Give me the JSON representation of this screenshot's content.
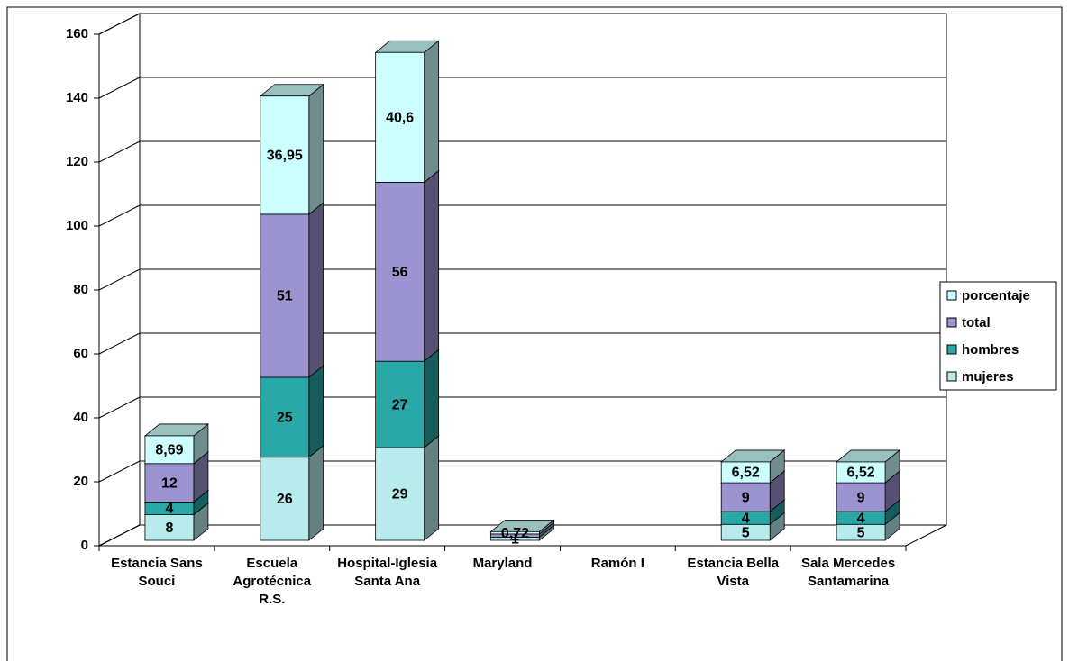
{
  "chart_data": {
    "type": "bar3d-stacked",
    "categories": [
      "Estancia Sans Souci",
      "Escuela Agrotécnica R.S.",
      "Hospital-Iglesia Santa Ana",
      "Maryland",
      "Ramón I",
      "Estancia Bella Vista",
      "Sala Mercedes Santamarina"
    ],
    "series": [
      {
        "name": "mujeres",
        "color": "#b8ecec",
        "values": [
          8,
          26,
          29,
          1,
          null,
          5,
          5
        ]
      },
      {
        "name": "hombres",
        "color": "#2aa8a8",
        "values": [
          4,
          25,
          27,
          null,
          null,
          4,
          4
        ]
      },
      {
        "name": "total",
        "color": "#9b94d0",
        "values": [
          12,
          51,
          56,
          1,
          null,
          9,
          9
        ]
      },
      {
        "name": "porcentaje",
        "color": "#ccffff",
        "values": [
          8.69,
          36.95,
          40.6,
          0.72,
          null,
          6.52,
          6.52
        ],
        "value_labels": [
          "8,69",
          "36,95",
          "40,6",
          "0,72",
          null,
          "6,52",
          "6,52"
        ]
      }
    ],
    "ylim": [
      0,
      160
    ],
    "yticks": [
      0,
      20,
      40,
      60,
      80,
      100,
      120,
      140,
      160
    ],
    "grid": true,
    "legend": "right"
  }
}
